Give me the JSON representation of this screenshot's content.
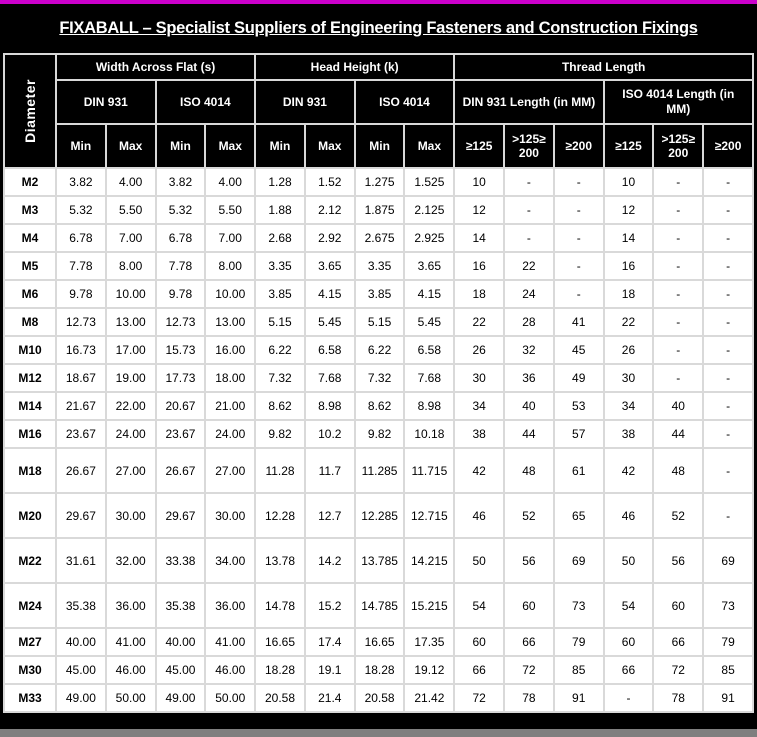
{
  "title": "FIXABALL – Specialist Suppliers of Engineering Fasteners and Construction Fixings",
  "colors": {
    "accent_top": "#CC00CC",
    "header_bg": "#000000",
    "header_text": "#FFFFFF",
    "grid_line": "#D9D9D9",
    "bottom_bar": "#7F7F7F"
  },
  "table": {
    "corner_label": "Diameter",
    "groups": [
      {
        "label": "Width Across Flat (s)"
      },
      {
        "label": "Head Height (k)"
      },
      {
        "label": "Thread Length"
      }
    ],
    "subgroups": [
      "DIN 931",
      "ISO 4014",
      "DIN 931",
      "ISO 4014",
      "DIN 931 Length (in MM)",
      "ISO 4014 Length (in MM)"
    ],
    "measure_headers": [
      "Min",
      "Max",
      "Min",
      "Max",
      "Min",
      "Max",
      "Min",
      "Max"
    ],
    "range_headers": [
      "≥125",
      ">125≥200",
      "≥200",
      "≥125",
      ">125≥200",
      "≥200"
    ],
    "rows": [
      {
        "diameter": "M2",
        "tall": false,
        "values": [
          "3.82",
          "4.00",
          "3.82",
          "4.00",
          "1.28",
          "1.52",
          "1.275",
          "1.525",
          "10",
          "-",
          "-",
          "10",
          "-",
          "-"
        ]
      },
      {
        "diameter": "M3",
        "tall": false,
        "values": [
          "5.32",
          "5.50",
          "5.32",
          "5.50",
          "1.88",
          "2.12",
          "1.875",
          "2.125",
          "12",
          "-",
          "-",
          "12",
          "-",
          "-"
        ]
      },
      {
        "diameter": "M4",
        "tall": false,
        "values": [
          "6.78",
          "7.00",
          "6.78",
          "7.00",
          "2.68",
          "2.92",
          "2.675",
          "2.925",
          "14",
          "-",
          "-",
          "14",
          "-",
          "-"
        ]
      },
      {
        "diameter": "M5",
        "tall": false,
        "values": [
          "7.78",
          "8.00",
          "7.78",
          "8.00",
          "3.35",
          "3.65",
          "3.35",
          "3.65",
          "16",
          "22",
          "-",
          "16",
          "-",
          "-"
        ]
      },
      {
        "diameter": "M6",
        "tall": false,
        "values": [
          "9.78",
          "10.00",
          "9.78",
          "10.00",
          "3.85",
          "4.15",
          "3.85",
          "4.15",
          "18",
          "24",
          "-",
          "18",
          "-",
          "-"
        ]
      },
      {
        "diameter": "M8",
        "tall": false,
        "values": [
          "12.73",
          "13.00",
          "12.73",
          "13.00",
          "5.15",
          "5.45",
          "5.15",
          "5.45",
          "22",
          "28",
          "41",
          "22",
          "-",
          "-"
        ]
      },
      {
        "diameter": "M10",
        "tall": false,
        "values": [
          "16.73",
          "17.00",
          "15.73",
          "16.00",
          "6.22",
          "6.58",
          "6.22",
          "6.58",
          "26",
          "32",
          "45",
          "26",
          "-",
          "-"
        ]
      },
      {
        "diameter": "M12",
        "tall": false,
        "values": [
          "18.67",
          "19.00",
          "17.73",
          "18.00",
          "7.32",
          "7.68",
          "7.32",
          "7.68",
          "30",
          "36",
          "49",
          "30",
          "-",
          "-"
        ]
      },
      {
        "diameter": "M14",
        "tall": false,
        "values": [
          "21.67",
          "22.00",
          "20.67",
          "21.00",
          "8.62",
          "8.98",
          "8.62",
          "8.98",
          "34",
          "40",
          "53",
          "34",
          "40",
          "-"
        ]
      },
      {
        "diameter": "M16",
        "tall": false,
        "values": [
          "23.67",
          "24.00",
          "23.67",
          "24.00",
          "9.82",
          "10.2",
          "9.82",
          "10.18",
          "38",
          "44",
          "57",
          "38",
          "44",
          "-"
        ]
      },
      {
        "diameter": "M18",
        "tall": true,
        "values": [
          "26.67",
          "27.00",
          "26.67",
          "27.00",
          "11.28",
          "11.7",
          "11.285",
          "11.715",
          "42",
          "48",
          "61",
          "42",
          "48",
          "-"
        ]
      },
      {
        "diameter": "M20",
        "tall": true,
        "values": [
          "29.67",
          "30.00",
          "29.67",
          "30.00",
          "12.28",
          "12.7",
          "12.285",
          "12.715",
          "46",
          "52",
          "65",
          "46",
          "52",
          "-"
        ]
      },
      {
        "diameter": "M22",
        "tall": true,
        "values": [
          "31.61",
          "32.00",
          "33.38",
          "34.00",
          "13.78",
          "14.2",
          "13.785",
          "14.215",
          "50",
          "56",
          "69",
          "50",
          "56",
          "69"
        ]
      },
      {
        "diameter": "M24",
        "tall": true,
        "values": [
          "35.38",
          "36.00",
          "35.38",
          "36.00",
          "14.78",
          "15.2",
          "14.785",
          "15.215",
          "54",
          "60",
          "73",
          "54",
          "60",
          "73"
        ]
      },
      {
        "diameter": "M27",
        "tall": false,
        "values": [
          "40.00",
          "41.00",
          "40.00",
          "41.00",
          "16.65",
          "17.4",
          "16.65",
          "17.35",
          "60",
          "66",
          "79",
          "60",
          "66",
          "79"
        ]
      },
      {
        "diameter": "M30",
        "tall": false,
        "values": [
          "45.00",
          "46.00",
          "45.00",
          "46.00",
          "18.28",
          "19.1",
          "18.28",
          "19.12",
          "66",
          "72",
          "85",
          "66",
          "72",
          "85"
        ]
      },
      {
        "diameter": "M33",
        "tall": false,
        "values": [
          "49.00",
          "50.00",
          "49.00",
          "50.00",
          "20.58",
          "21.4",
          "20.58",
          "21.42",
          "72",
          "78",
          "91",
          "-",
          "78",
          "91"
        ]
      }
    ]
  }
}
